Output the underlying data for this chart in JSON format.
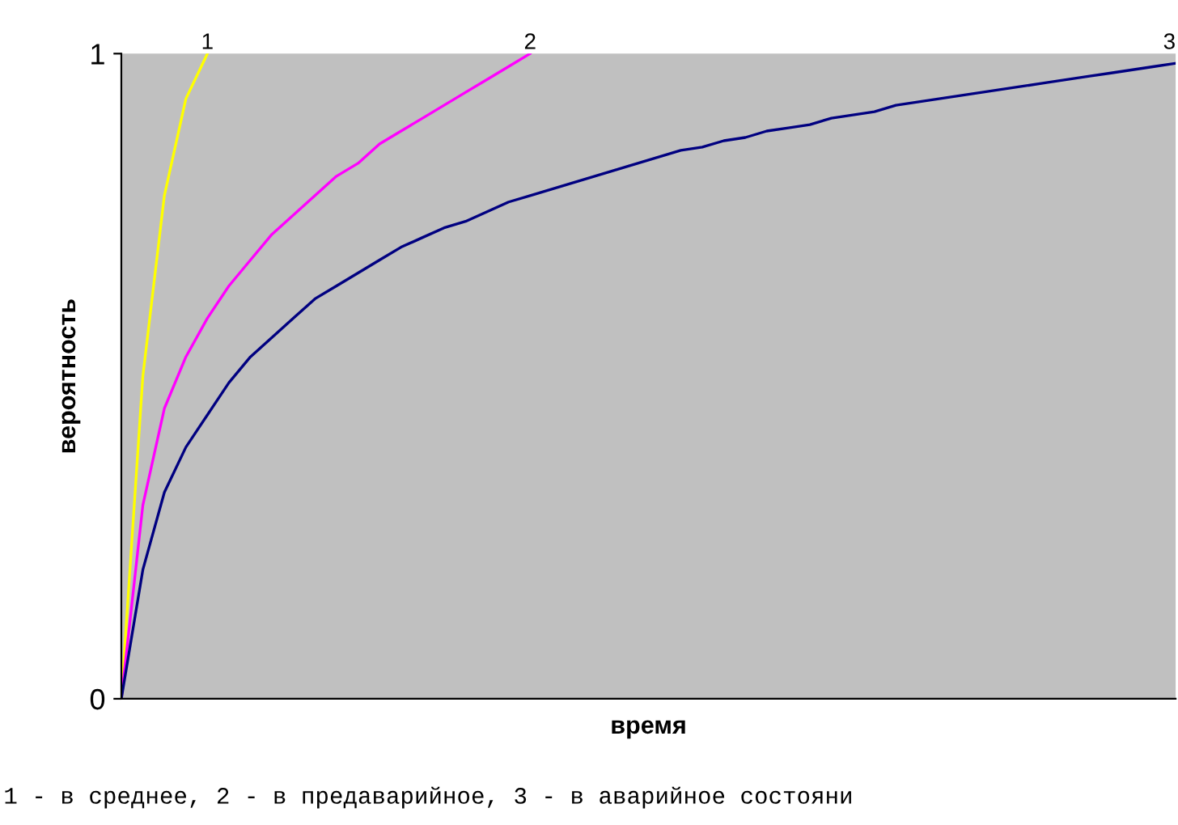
{
  "chart_data": {
    "type": "line",
    "xlabel": "время",
    "ylabel": "вероятность",
    "categories": [
      null,
      null,
      null,
      null,
      null,
      null,
      null,
      null,
      null,
      null,
      null,
      null,
      null,
      null,
      null,
      null,
      null,
      null,
      null,
      null,
      null,
      null,
      null,
      null,
      null,
      null,
      null,
      null,
      null,
      null,
      null,
      null,
      null,
      null,
      null,
      null,
      null,
      null,
      null,
      null,
      null,
      null,
      null,
      null,
      null,
      null,
      null,
      null,
      null,
      null
    ],
    "series": [
      {
        "name": "1",
        "color": "#ffff00",
        "values": [
          0,
          0.5,
          0.78,
          0.93,
          1,
          null,
          null,
          null,
          null,
          null,
          null,
          null,
          null,
          null,
          null,
          null,
          null,
          null,
          null,
          null,
          null,
          null,
          null,
          null,
          null,
          null,
          null,
          null,
          null,
          null,
          null,
          null,
          null,
          null,
          null,
          null,
          null,
          null,
          null,
          null,
          null,
          null,
          null,
          null,
          null,
          null,
          null,
          null,
          null,
          null
        ]
      },
      {
        "name": "2",
        "color": "#ff00ff",
        "values": [
          0,
          0.3,
          0.45,
          0.53,
          0.59,
          0.64,
          0.68,
          0.72,
          0.75,
          0.78,
          0.81,
          0.83,
          0.86,
          0.88,
          0.9,
          0.92,
          0.94,
          0.96,
          0.98,
          1,
          null,
          null,
          null,
          null,
          null,
          null,
          null,
          null,
          null,
          null,
          null,
          null,
          null,
          null,
          null,
          null,
          null,
          null,
          null,
          null,
          null,
          null,
          null,
          null,
          null,
          null,
          null,
          null,
          null,
          null
        ]
      },
      {
        "name": "3",
        "color": "#000080",
        "values": [
          0,
          0.2,
          0.32,
          0.39,
          0.44,
          0.49,
          0.53,
          0.56,
          0.59,
          0.62,
          0.64,
          0.66,
          0.68,
          0.7,
          0.715,
          0.73,
          0.74,
          0.755,
          0.77,
          0.78,
          0.79,
          0.8,
          0.81,
          0.82,
          0.83,
          0.84,
          0.85,
          0.855,
          0.865,
          0.87,
          0.88,
          0.885,
          0.89,
          0.9,
          0.905,
          0.91,
          0.92,
          0.925,
          0.93,
          0.935,
          0.94,
          0.945,
          0.95,
          0.955,
          0.96,
          0.965,
          0.97,
          0.975,
          0.98,
          0.985
        ]
      }
    ],
    "ylim": [
      0,
      1
    ],
    "yticks": [
      0,
      1
    ],
    "grid": false,
    "legend": false,
    "annotations": [
      "1 - в среднее, 2 - в предаварийное, 3 - в аварийное состояни"
    ]
  }
}
